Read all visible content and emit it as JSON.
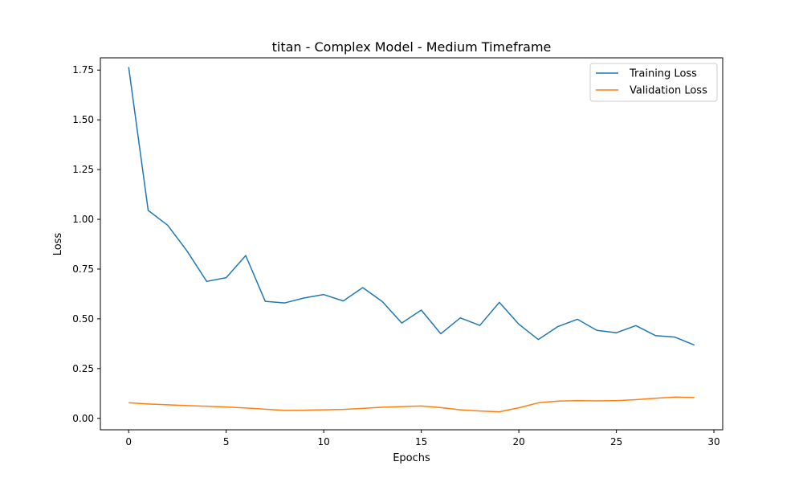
{
  "chart_data": {
    "type": "line",
    "title": "titan - Complex Model - Medium Timeframe",
    "xlabel": "Epochs",
    "ylabel": "Loss",
    "xlim": [
      -1.45,
      30.45
    ],
    "ylim": [
      -0.0575,
      1.8115
    ],
    "xticks": [
      0,
      5,
      10,
      15,
      20,
      25,
      30
    ],
    "yticks": [
      0.0,
      0.25,
      0.5,
      0.75,
      1.0,
      1.25,
      1.5,
      1.75
    ],
    "xtick_labels": [
      "0",
      "5",
      "10",
      "15",
      "20",
      "25",
      "30"
    ],
    "ytick_labels": [
      "0.00",
      "0.25",
      "0.50",
      "0.75",
      "1.00",
      "1.25",
      "1.50",
      "1.75"
    ],
    "grid": false,
    "legend_position": "top-right",
    "x": [
      0,
      1,
      2,
      3,
      4,
      5,
      6,
      7,
      8,
      9,
      10,
      11,
      12,
      13,
      14,
      15,
      16,
      17,
      18,
      19,
      20,
      21,
      22,
      23,
      24,
      25,
      26,
      27,
      28,
      29
    ],
    "series": [
      {
        "name": "Training Loss",
        "color": "#1f77b4",
        "values": [
          1.765,
          1.045,
          0.97,
          0.84,
          0.688,
          0.707,
          0.818,
          0.588,
          0.58,
          0.605,
          0.622,
          0.59,
          0.657,
          0.587,
          0.479,
          0.544,
          0.425,
          0.505,
          0.467,
          0.583,
          0.473,
          0.396,
          0.461,
          0.498,
          0.442,
          0.43,
          0.466,
          0.416,
          0.408,
          0.368
        ]
      },
      {
        "name": "Validation Loss",
        "color": "#ff7f0e",
        "values": [
          0.078,
          0.072,
          0.068,
          0.064,
          0.061,
          0.057,
          0.052,
          0.046,
          0.04,
          0.041,
          0.043,
          0.045,
          0.05,
          0.056,
          0.059,
          0.062,
          0.054,
          0.043,
          0.037,
          0.033,
          0.053,
          0.078,
          0.087,
          0.089,
          0.088,
          0.089,
          0.094,
          0.101,
          0.107,
          0.105
        ]
      }
    ]
  }
}
